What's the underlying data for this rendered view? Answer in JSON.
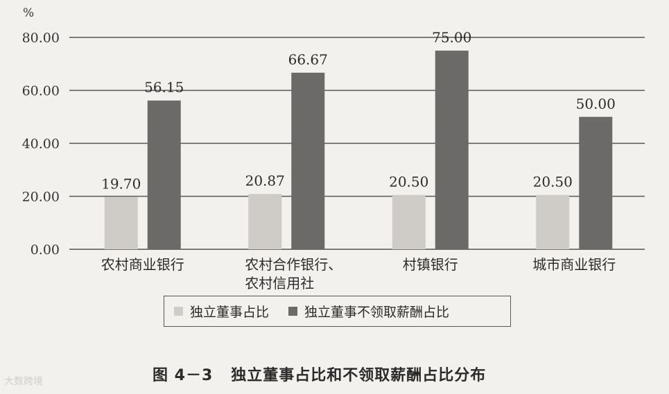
{
  "figure": {
    "number": "图 4－3",
    "title": "独立董事占比和不领取薪酬占比分布"
  },
  "watermark": "大数跨境",
  "chart_data": {
    "type": "bar",
    "unit": "%",
    "categories": [
      "农村商业银行",
      "农村合作银行、\n农村信用社",
      "村镇银行",
      "城市商业银行"
    ],
    "series": [
      {
        "name": "独立董事占比",
        "values": [
          19.7,
          20.87,
          20.5,
          20.5
        ],
        "labels": [
          "19.70",
          "20.87",
          "20.50",
          "20.50"
        ],
        "color": "#cfccc7"
      },
      {
        "name": "独立董事不领取薪酬占比",
        "values": [
          56.15,
          66.67,
          75.0,
          50.0
        ],
        "labels": [
          "56.15",
          "66.67",
          "75.00",
          "50.00"
        ],
        "color": "#6b6a68"
      }
    ],
    "ylim": [
      0,
      80
    ],
    "yticks": [
      "0.00",
      "20.00",
      "40.00",
      "60.00",
      "80.00"
    ],
    "grid": true,
    "legend_position": "bottom"
  }
}
